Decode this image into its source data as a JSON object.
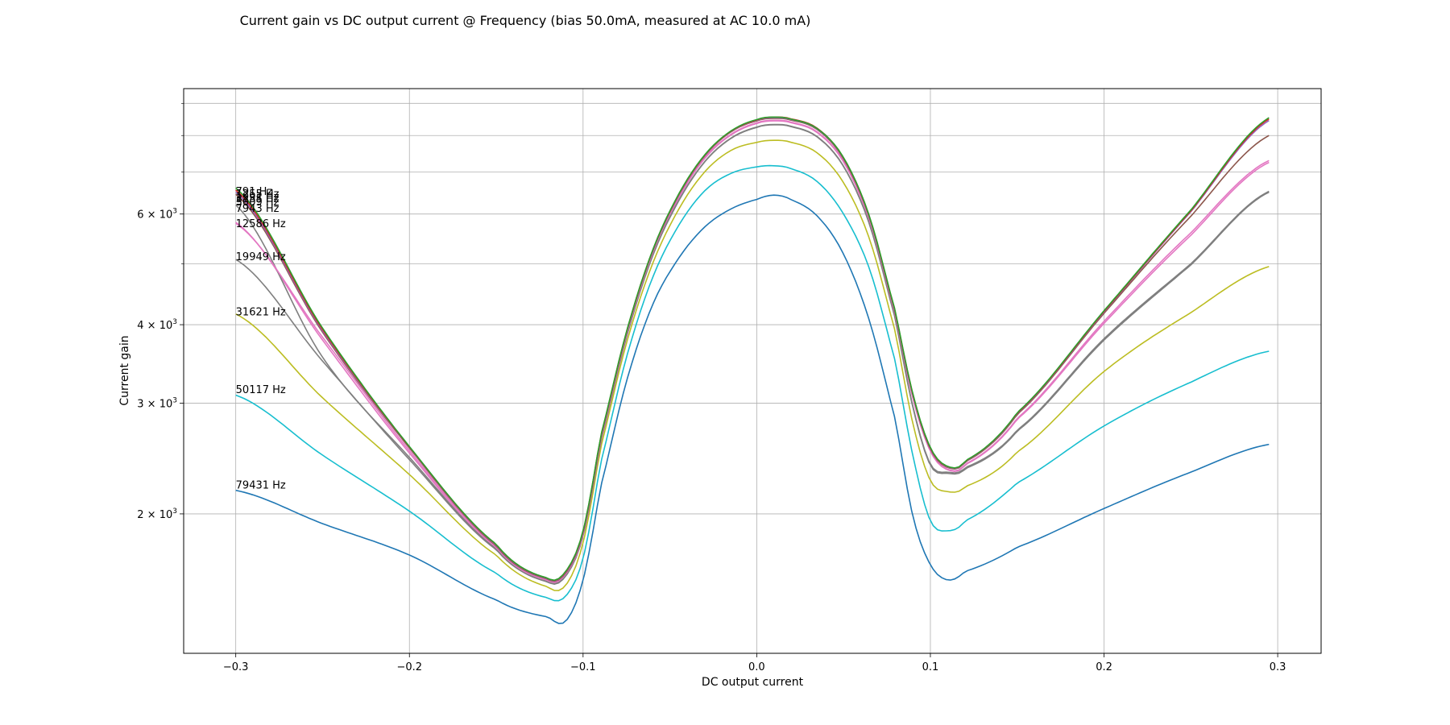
{
  "chart_data": {
    "type": "line",
    "title": "Current gain vs DC output current @ Frequency (bias 50.0mA, measured at AC 10.0 mA)",
    "xlabel": "DC output current",
    "ylabel": "Current gain",
    "x_scale": "linear",
    "y_scale": "log",
    "xlim": [
      -0.33,
      0.325
    ],
    "ylim": [
      1200,
      9500
    ],
    "grid": true,
    "legend": "none (series labelled at left end of each curve)",
    "x_ticks": [
      {
        "value": -0.3,
        "label": "−0.3"
      },
      {
        "value": -0.2,
        "label": "−0.2"
      },
      {
        "value": -0.1,
        "label": "−0.1"
      },
      {
        "value": 0.0,
        "label": "0.0"
      },
      {
        "value": 0.1,
        "label": "0.1"
      },
      {
        "value": 0.2,
        "label": "0.2"
      },
      {
        "value": 0.3,
        "label": "0.3"
      }
    ],
    "y_major_ticks": [
      {
        "value": 2000,
        "base": "2 × 10",
        "exp": "3"
      },
      {
        "value": 3000,
        "base": "3 × 10",
        "exp": "3"
      },
      {
        "value": 4000,
        "base": "4 × 10",
        "exp": "3"
      },
      {
        "value": 6000,
        "base": "6 × 10",
        "exp": "3"
      }
    ],
    "y_minor_gridlines": [
      5000,
      7000,
      8000,
      9000
    ],
    "shape_x": [
      -0.3,
      -0.25,
      -0.2,
      -0.15,
      -0.12,
      -0.11,
      -0.1,
      -0.09,
      -0.075,
      -0.06,
      -0.045,
      -0.03,
      -0.015,
      0.0,
      0.01,
      0.02,
      0.035,
      0.05,
      0.065,
      0.08,
      0.09,
      0.1,
      0.11,
      0.12,
      0.15,
      0.2,
      0.25,
      0.295
    ],
    "series": [
      {
        "name": "791 Hz",
        "color": "#2ca02c",
        "label_y": 6510,
        "label_text": "791 Hz",
        "y": [
          6600,
          3950,
          2560,
          1790,
          1580,
          1620,
          1880,
          2650,
          3900,
          5250,
          6450,
          7450,
          8130,
          8480,
          8560,
          8490,
          8200,
          7380,
          5940,
          4190,
          3100,
          2550,
          2380,
          2430,
          2900,
          4210,
          6090,
          8540
        ]
      },
      {
        "name": "1255 Hz",
        "color": "#d62728",
        "label_y": 6450,
        "label_text": "1255 Hz",
        "y": [
          6550,
          3930,
          2555,
          1788,
          1579,
          1618,
          1876,
          2645,
          3895,
          5245,
          6440,
          7440,
          8120,
          8470,
          8560,
          8500,
          8210,
          7370,
          5930,
          4180,
          3095,
          2545,
          2378,
          2428,
          2895,
          4200,
          6070,
          8500
        ]
      },
      {
        "name": "1991 Hz",
        "color": "#9467bd",
        "label_y": 6390,
        "label_text": "1991 Hz",
        "y": [
          6500,
          3910,
          2550,
          1785,
          1577,
          1615,
          1870,
          2640,
          3890,
          5240,
          6430,
          7430,
          8110,
          8460,
          8540,
          8480,
          8190,
          7360,
          5920,
          4170,
          3090,
          2540,
          2375,
          2425,
          2890,
          4190,
          6050,
          8450
        ]
      },
      {
        "name": "3155 Hz",
        "color": "#8c564b",
        "label_y": 6340,
        "label_text": "3155 Hz",
        "y": [
          6450,
          3890,
          2545,
          1780,
          1574,
          1611,
          1865,
          2630,
          3880,
          5230,
          6420,
          7420,
          8100,
          8440,
          8520,
          8460,
          8170,
          7340,
          5910,
          4165,
          3085,
          2535,
          2370,
          2420,
          2880,
          4170,
          5950,
          8000
        ]
      },
      {
        "name": "5009 Hz",
        "color": "#e377c2",
        "label_y": 6270,
        "label_text": "5009 Hz",
        "y": [
          5800,
          3820,
          2520,
          1770,
          1567,
          1604,
          1857,
          2615,
          3860,
          5200,
          6380,
          7370,
          8030,
          8380,
          8460,
          8400,
          8100,
          7280,
          5870,
          4140,
          3060,
          2520,
          2355,
          2400,
          2840,
          4050,
          5600,
          7300
        ]
      },
      {
        "name": "7943 Hz",
        "color": "#7f7f7f",
        "label_y": 6120,
        "label_text": "7943 Hz",
        "y": [
          6200,
          3550,
          2460,
          1760,
          1560,
          1595,
          1850,
          2600,
          3830,
          5150,
          6300,
          7270,
          7920,
          8250,
          8330,
          8270,
          7960,
          7150,
          5780,
          4080,
          2960,
          2400,
          2330,
          2370,
          2720,
          3800,
          5000,
          6520
        ]
      },
      {
        "name": "12586 Hz",
        "color": "#e377c2",
        "label_y": 5790,
        "label_text": "12586 Hz",
        "y": [
          5820,
          3780,
          2500,
          1765,
          1563,
          1600,
          1853,
          2608,
          3850,
          5190,
          6360,
          7350,
          8010,
          8360,
          8440,
          8380,
          8080,
          7260,
          5850,
          4130,
          3050,
          2515,
          2350,
          2395,
          2830,
          4020,
          5550,
          7250
        ]
      },
      {
        "name": "19949 Hz",
        "color": "#7f7f7f",
        "label_y": 5130,
        "label_text": "19949 Hz",
        "y": [
          5080,
          3500,
          2440,
          1755,
          1558,
          1592,
          1846,
          2595,
          3820,
          5140,
          6290,
          7260,
          7910,
          8240,
          8320,
          8260,
          7950,
          7140,
          5770,
          4070,
          2950,
          2390,
          2320,
          2360,
          2710,
          3780,
          4980,
          6500
        ]
      },
      {
        "name": "31621 Hz",
        "color": "#bcbd22",
        "label_y": 4190,
        "label_text": "31621 Hz",
        "y": [
          4160,
          3060,
          2310,
          1720,
          1530,
          1540,
          1800,
          2540,
          3740,
          5000,
          6100,
          7000,
          7570,
          7800,
          7860,
          7800,
          7500,
          6730,
          5470,
          3880,
          2780,
          2260,
          2170,
          2210,
          2510,
          3370,
          4180,
          4950
        ]
      },
      {
        "name": "50117 Hz",
        "color": "#17becf",
        "label_y": 3150,
        "label_text": "50117 Hz",
        "y": [
          3090,
          2480,
          2020,
          1610,
          1470,
          1480,
          1700,
          2400,
          3550,
          4750,
          5750,
          6530,
          6960,
          7130,
          7160,
          7080,
          6750,
          6000,
          4900,
          3480,
          2470,
          1950,
          1880,
          1950,
          2240,
          2760,
          3240,
          3630
        ]
      },
      {
        "name": "79431 Hz",
        "color": "#1f77b4",
        "label_y": 2220,
        "label_text": "79431 Hz",
        "y": [
          2180,
          1930,
          1720,
          1460,
          1370,
          1350,
          1570,
          2200,
          3250,
          4300,
          5100,
          5720,
          6110,
          6330,
          6430,
          6320,
          5950,
          5180,
          4050,
          2810,
          1980,
          1660,
          1570,
          1620,
          1770,
          2040,
          2330,
          2580
        ]
      }
    ]
  }
}
